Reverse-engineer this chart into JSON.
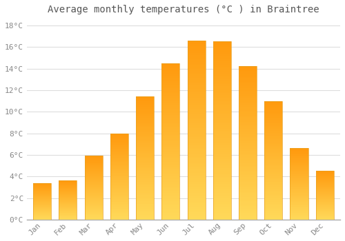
{
  "months": [
    "Jan",
    "Feb",
    "Mar",
    "Apr",
    "May",
    "Jun",
    "Jul",
    "Aug",
    "Sep",
    "Oct",
    "Nov",
    "Dec"
  ],
  "temperatures": [
    3.4,
    3.6,
    5.9,
    8.0,
    11.4,
    14.5,
    16.6,
    16.5,
    14.2,
    11.0,
    6.6,
    4.5
  ],
  "bar_color_bottom": "#FFD060",
  "bar_color_top": "#FFA020",
  "background_color": "#FFFFFF",
  "plot_bg_color": "#FFFFFF",
  "title": "Average monthly temperatures (°C ) in Braintree",
  "title_fontsize": 10,
  "ylabel_ticks": [
    "0°C",
    "2°C",
    "4°C",
    "6°C",
    "8°C",
    "10°C",
    "12°C",
    "14°C",
    "16°C",
    "18°C"
  ],
  "ytick_values": [
    0,
    2,
    4,
    6,
    8,
    10,
    12,
    14,
    16,
    18
  ],
  "ylim": [
    0,
    18.5
  ],
  "grid_color": "#DDDDDD",
  "tick_label_color": "#888888",
  "title_color": "#555555",
  "bar_width": 0.7
}
